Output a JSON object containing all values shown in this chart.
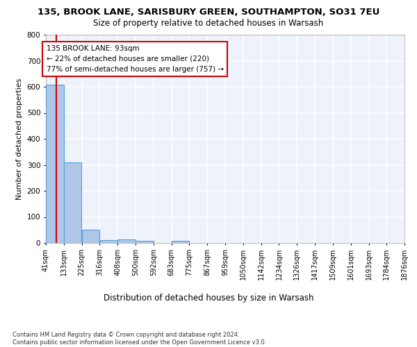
{
  "title1": "135, BROOK LANE, SARISBURY GREEN, SOUTHAMPTON, SO31 7EU",
  "title2": "Size of property relative to detached houses in Warsash",
  "xlabel": "Distribution of detached houses by size in Warsash",
  "ylabel": "Number of detached properties",
  "footnote": "Contains HM Land Registry data © Crown copyright and database right 2024.\nContains public sector information licensed under the Open Government Licence v3.0.",
  "bin_edges": [
    41,
    133,
    225,
    316,
    408,
    500,
    592,
    683,
    775,
    867,
    959,
    1050,
    1142,
    1234,
    1326,
    1417,
    1509,
    1601,
    1693,
    1784,
    1876
  ],
  "bar_heights": [
    607,
    310,
    50,
    12,
    13,
    7,
    0,
    8,
    0,
    0,
    0,
    0,
    0,
    0,
    0,
    0,
    0,
    0,
    0,
    0
  ],
  "bar_color": "#aec6e8",
  "bar_edge_color": "#5a9fd4",
  "property_size": 93,
  "property_line_color": "#cc0000",
  "annotation_line1": "135 BROOK LANE: 93sqm",
  "annotation_line2": "← 22% of detached houses are smaller (220)",
  "annotation_line3": "77% of semi-detached houses are larger (757) →",
  "annotation_box_color": "#ffffff",
  "annotation_box_edge_color": "#cc0000",
  "ylim": [
    0,
    800
  ],
  "yticks": [
    0,
    100,
    200,
    300,
    400,
    500,
    600,
    700,
    800
  ],
  "bg_color": "#eef2fa",
  "grid_color": "#ffffff",
  "title1_fontsize": 9.5,
  "title2_fontsize": 8.5,
  "tick_label_fontsize": 7,
  "ylabel_fontsize": 8,
  "xlabel_fontsize": 8.5,
  "annotation_fontsize": 7.5,
  "footnote_fontsize": 6
}
